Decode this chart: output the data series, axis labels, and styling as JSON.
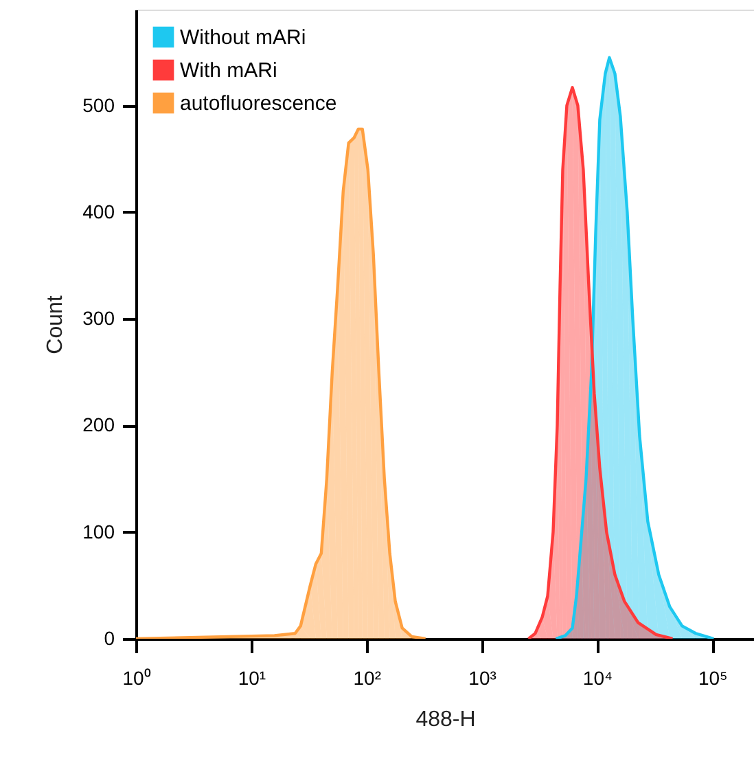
{
  "chart_data": {
    "type": "area",
    "xlabel": "488-H",
    "ylabel": "Count",
    "log": "x",
    "xlim": [
      1,
      230000
    ],
    "ylim": [
      0,
      590
    ],
    "xticks": [
      {
        "value": 1,
        "label": "10⁰"
      },
      {
        "value": 10,
        "label": "10¹"
      },
      {
        "value": 100,
        "label": "10²"
      },
      {
        "value": 1000,
        "label": "10³"
      },
      {
        "value": 10000,
        "label": "10⁴"
      },
      {
        "value": 100000,
        "label": "10⁵"
      }
    ],
    "yticks": [
      0,
      100,
      200,
      300,
      400,
      500
    ],
    "grid": false,
    "legend": "top left",
    "series": [
      {
        "name": "Without mARi",
        "color": "#1ec8f0",
        "x": [
          4395,
          5320,
          6110,
          6630,
          7200,
          8030,
          8960,
          9730,
          10560,
          11790,
          12800,
          14290,
          15930,
          18280,
          20400,
          23400,
          27560,
          34340,
          42740,
          54700,
          71900,
          102800
        ],
        "values": [
          0,
          3,
          10,
          40,
          87,
          150,
          250,
          380,
          487,
          530,
          545,
          530,
          490,
          400,
          300,
          190,
          110,
          60,
          30,
          12,
          5,
          0
        ]
      },
      {
        "name": "With mARi",
        "color": "#ff3b3b",
        "x": [
          2541,
          2911,
          3340,
          3727,
          4159,
          4518,
          4775,
          5040,
          5470,
          6110,
          6810,
          7600,
          8490,
          9460,
          10560,
          12100,
          14290,
          17300,
          22760,
          32500,
          45200
        ],
        "values": [
          0,
          5,
          20,
          40,
          100,
          200,
          330,
          440,
          500,
          517,
          500,
          440,
          330,
          230,
          160,
          100,
          60,
          35,
          15,
          4,
          0
        ]
      },
      {
        "name": "autofluorescence",
        "color": "#ffa040",
        "x": [
          1,
          15.9,
          24.0,
          26.8,
          32.5,
          36.3,
          40.5,
          45.2,
          50.4,
          56.2,
          62.8,
          70.0,
          78.2,
          84.9,
          92.1,
          102.8,
          114.8,
          128.0,
          142.9,
          159.2,
          177.8,
          204,
          247,
          325
        ],
        "values": [
          0,
          3,
          5,
          12,
          50,
          70,
          80,
          150,
          250,
          330,
          420,
          465,
          470,
          478,
          478,
          440,
          360,
          250,
          150,
          80,
          35,
          10,
          2,
          0
        ]
      }
    ]
  }
}
